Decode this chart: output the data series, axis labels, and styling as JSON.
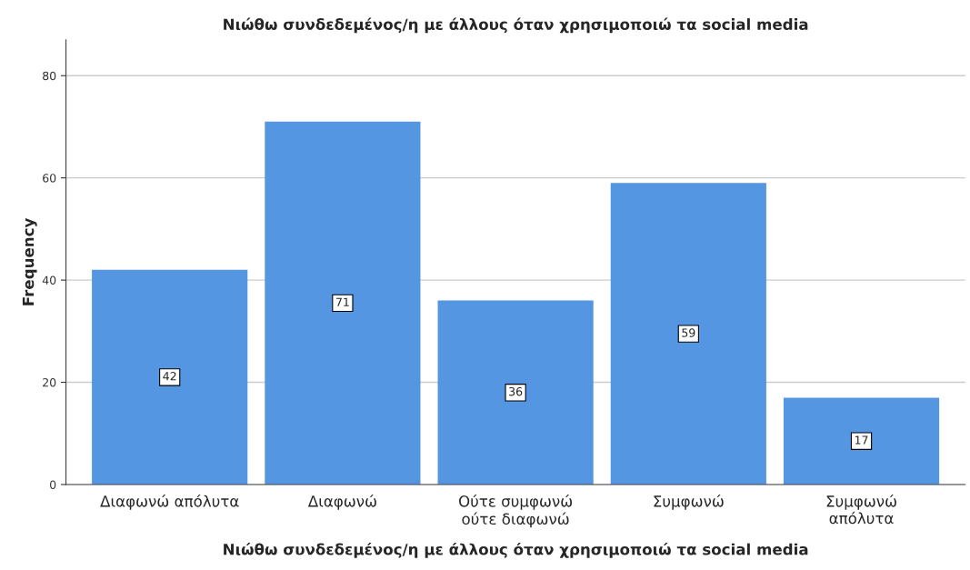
{
  "chart_data": {
    "type": "bar",
    "title": "Νιώθω συνδεδεμένος/η με άλλους όταν χρησιμοποιώ τα social media",
    "xlabel": "Νιώθω συνδεδεμένος/η με άλλους όταν χρησιμοποιώ τα social media",
    "ylabel": "Frequency",
    "categories": [
      "Διαφωνώ απόλυτα",
      "Διαφωνώ",
      "Ούτε συμφωνώ\nούτε διαφωνώ",
      "Συμφωνώ",
      "Συμφωνώ\nαπόλυτα"
    ],
    "values": [
      42,
      71,
      36,
      59,
      17
    ],
    "color": "#5596e3",
    "ylim": [
      0,
      87
    ],
    "yticks": [
      0,
      20,
      40,
      60,
      80
    ],
    "grid": "y",
    "data_labels": true
  }
}
